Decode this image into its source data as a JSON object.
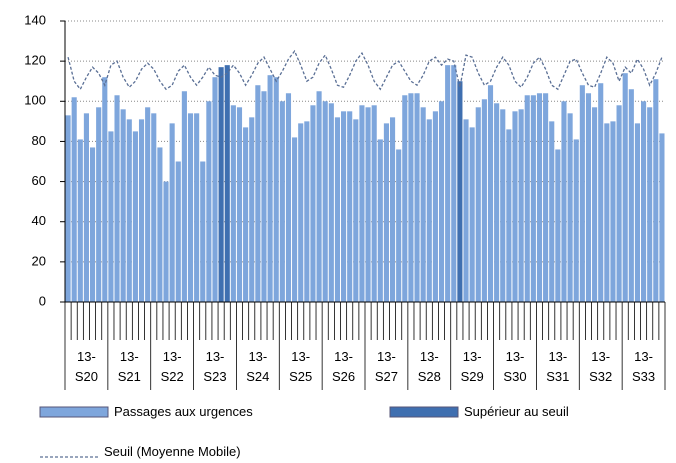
{
  "chart_data": {
    "type": "bar",
    "categories": [
      null,
      null,
      null,
      null,
      null,
      null,
      null,
      null,
      null,
      null,
      null,
      null,
      null,
      null,
      null,
      null,
      null,
      null,
      null,
      null,
      null,
      null,
      null,
      null,
      null,
      null,
      null,
      null,
      null,
      null,
      null,
      null,
      null,
      null,
      null,
      null,
      null,
      null,
      null,
      null,
      null,
      null,
      null,
      null,
      null,
      null,
      null,
      null,
      null,
      null,
      null,
      null,
      null,
      null,
      null,
      null,
      null,
      null,
      null,
      null,
      null,
      null,
      null,
      null,
      null,
      null,
      null,
      null,
      null,
      null,
      null,
      null,
      null,
      null,
      null,
      null,
      null,
      null,
      null,
      null,
      null,
      null,
      null,
      null,
      null,
      null,
      null,
      null,
      null,
      null,
      null,
      null,
      null,
      null,
      null,
      null,
      null,
      null
    ],
    "week_labels": [
      "13-S20",
      "13-S21",
      "13-S22",
      "13-S23",
      "13-S24",
      "13-S25",
      "13-S26",
      "13-S27",
      "13-S28",
      "13-S29",
      "13-S30",
      "13-S31",
      "13-S32",
      "13-S33"
    ],
    "series": [
      {
        "name": "Passages aux urgences",
        "color": "#7ea6dc",
        "type": "bar",
        "values": [
          93,
          102,
          81,
          94,
          77,
          97,
          112,
          85,
          103,
          96,
          91,
          85,
          91,
          97,
          94,
          77,
          60,
          89,
          70,
          105,
          94,
          94,
          70,
          100,
          112,
          null,
          null,
          98,
          97,
          87,
          92,
          108,
          105,
          113,
          112,
          100,
          104,
          82,
          89,
          90,
          98,
          105,
          100,
          99,
          92,
          95,
          95,
          91,
          98,
          97,
          98,
          81,
          89,
          92,
          76,
          103,
          104,
          104,
          97,
          91,
          95,
          100,
          118,
          118,
          null,
          91,
          87,
          97,
          101,
          108,
          99,
          96,
          86,
          95,
          96,
          103,
          103,
          104,
          104,
          90,
          76,
          100,
          94,
          81,
          108,
          104,
          97,
          109,
          89,
          90,
          98,
          114,
          106,
          89,
          100,
          97,
          111,
          84
        ]
      },
      {
        "name": "Supérieur au seuil",
        "color": "#3f6fb0",
        "type": "bar",
        "values": [
          null,
          null,
          null,
          null,
          null,
          null,
          null,
          null,
          null,
          null,
          null,
          null,
          null,
          null,
          null,
          null,
          null,
          null,
          null,
          null,
          null,
          null,
          null,
          null,
          null,
          117,
          118,
          null,
          null,
          null,
          null,
          null,
          null,
          null,
          null,
          null,
          null,
          null,
          null,
          null,
          null,
          null,
          null,
          null,
          null,
          null,
          null,
          null,
          null,
          null,
          null,
          null,
          null,
          null,
          null,
          null,
          null,
          null,
          null,
          null,
          null,
          null,
          null,
          null,
          110,
          null,
          null,
          null,
          null,
          null,
          null,
          null,
          null,
          null,
          null,
          null,
          null,
          null,
          null,
          null,
          null,
          null,
          null,
          null,
          null,
          null,
          null,
          null,
          null,
          null,
          null,
          null,
          null,
          null,
          null,
          null,
          null,
          null
        ]
      },
      {
        "name": "Seuil (Moyenne Mobile)",
        "color": "#5a6f95",
        "type": "line",
        "values": [
          122,
          110,
          106,
          112,
          117,
          114,
          108,
          118,
          120,
          112,
          107,
          110,
          116,
          119,
          116,
          110,
          106,
          108,
          115,
          118,
          112,
          108,
          112,
          117,
          113,
          112,
          114,
          118,
          114,
          108,
          113,
          119,
          122,
          116,
          110,
          115,
          121,
          125,
          118,
          110,
          112,
          119,
          123,
          116,
          108,
          107,
          113,
          120,
          124,
          118,
          110,
          106,
          112,
          118,
          120,
          115,
          110,
          108,
          113,
          120,
          122,
          118,
          121,
          120,
          107,
          123,
          122,
          114,
          108,
          110,
          117,
          122,
          118,
          110,
          107,
          112,
          119,
          122,
          116,
          108,
          106,
          113,
          120,
          121,
          114,
          108,
          107,
          114,
          122,
          119,
          110,
          117,
          114,
          121,
          116,
          108,
          114,
          122
        ]
      }
    ],
    "ylim": [
      0,
      140
    ],
    "yticks": [
      0,
      20,
      40,
      60,
      80,
      100,
      120,
      140
    ],
    "grid": true
  }
}
